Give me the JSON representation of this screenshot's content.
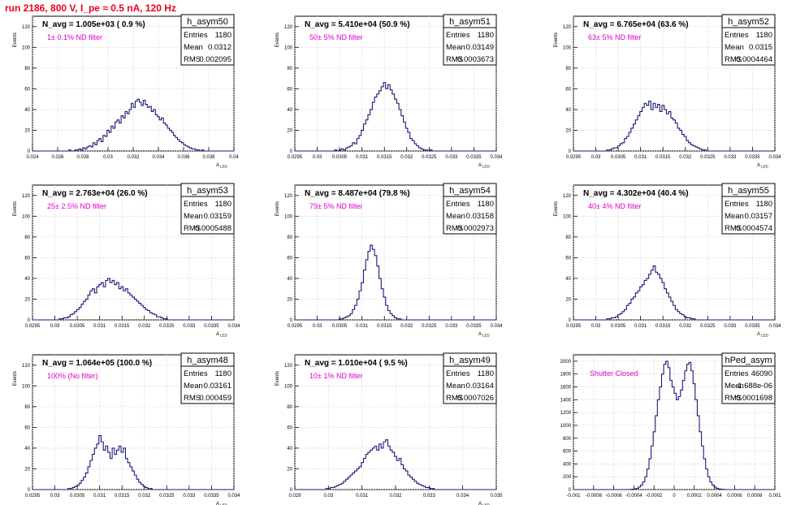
{
  "run_title": "run 2186,   800 V, I_pe ≈ 0.5 nA, 120 Hz",
  "colors": {
    "hist_line": "#1a1a7a",
    "note": "#e000c8",
    "title": "#e8001c",
    "grid": "#c8c8c8"
  },
  "chart_data": [
    {
      "type": "histogram",
      "name": "h_asym50",
      "stats": {
        "entries_label": "Entries",
        "entries": "1180",
        "mean_label": "Mean",
        "mean": "0.0312",
        "rms_label": "RMS",
        "rms": "0.002095"
      },
      "navg": "N_avg = 1.005e+03 ( 0.9 %)",
      "note": "1± 0.1% ND filter",
      "ylabel": "Events",
      "xlabel": "A_LED",
      "xlim": [
        0.024,
        0.04
      ],
      "ylim": [
        0,
        130
      ],
      "xticks": [
        "0.024",
        "0.026",
        "0.028",
        "0.03",
        "0.032",
        "0.034",
        "0.036",
        "0.038",
        "0.04"
      ],
      "yticks": [
        "0",
        "20",
        "40",
        "60",
        "80",
        "100",
        "120"
      ],
      "grid": true,
      "mean_value": 0.0312,
      "sigma_value": 0.002095,
      "peak": 50,
      "counts": [
        0,
        0,
        0,
        0,
        0,
        0,
        0,
        0,
        0,
        0,
        0,
        0,
        0,
        0,
        0,
        0,
        0,
        0,
        1,
        0,
        0,
        1,
        1,
        2,
        1,
        3,
        2,
        4,
        5,
        4,
        8,
        6,
        10,
        12,
        9,
        15,
        14,
        20,
        18,
        24,
        22,
        28,
        30,
        27,
        34,
        32,
        38,
        36,
        40,
        46,
        42,
        48,
        50,
        47,
        44,
        49,
        45,
        42,
        43,
        38,
        40,
        35,
        33,
        30,
        32,
        27,
        25,
        22,
        20,
        18,
        15,
        13,
        11,
        9,
        8,
        6,
        5,
        4,
        3,
        2,
        2,
        1,
        1,
        0,
        1,
        0,
        0,
        0,
        0,
        0,
        0,
        0,
        0,
        0,
        0,
        0,
        0,
        0,
        0,
        0
      ]
    },
    {
      "type": "histogram",
      "name": "h_asym51",
      "stats": {
        "entries_label": "Entries",
        "entries": "1180",
        "mean_label": "Mean",
        "mean": "0.03149",
        "rms_label": "RMS",
        "rms": "0.0003673"
      },
      "navg": "N_avg = 5.410e+04 (50.9 %)",
      "note": "50± 5% ND filter",
      "ylabel": "Events",
      "xlabel": "A_LED",
      "xlim": [
        0.0295,
        0.034
      ],
      "ylim": [
        0,
        130
      ],
      "xticks": [
        "0.0295",
        "0.03",
        "0.0305",
        "0.031",
        "0.0315",
        "0.032",
        "0.0325",
        "0.033",
        "0.0335",
        "0.034"
      ],
      "yticks": [
        "0",
        "20",
        "40",
        "60",
        "80",
        "100",
        "120"
      ],
      "grid": true,
      "mean_value": 0.03149,
      "sigma_value": 0.0003673,
      "peak": 66,
      "counts": [
        0,
        0,
        0,
        0,
        0,
        0,
        0,
        0,
        0,
        0,
        0,
        0,
        0,
        0,
        0,
        0,
        0,
        0,
        1,
        0,
        1,
        2,
        1,
        3,
        4,
        5,
        8,
        7,
        12,
        15,
        20,
        26,
        30,
        35,
        40,
        47,
        52,
        55,
        58,
        62,
        66,
        60,
        64,
        59,
        55,
        50,
        46,
        40,
        34,
        28,
        22,
        18,
        12,
        10,
        7,
        5,
        3,
        2,
        1,
        1,
        0,
        1,
        0,
        0,
        0,
        0,
        0,
        0,
        0,
        0,
        0,
        0,
        0,
        0,
        0,
        0,
        0,
        0,
        0,
        0,
        0,
        0,
        0,
        0,
        0,
        0,
        0,
        0,
        0,
        0,
        0
      ]
    },
    {
      "type": "histogram",
      "name": "h_asym52",
      "stats": {
        "entries_label": "Entries",
        "entries": "1180",
        "mean_label": "Mean",
        "mean": "0.0315",
        "rms_label": "RMS",
        "rms": "0.0004464"
      },
      "navg": "N_avg = 6.765e+04 (63.6 %)",
      "note": "63± 5% ND filter",
      "ylabel": "Events",
      "xlabel": "A_LED",
      "xlim": [
        0.0295,
        0.034
      ],
      "ylim": [
        0,
        130
      ],
      "xticks": [
        "0.0295",
        "0.03",
        "0.0305",
        "0.031",
        "0.0315",
        "0.032",
        "0.0325",
        "0.033",
        "0.0335",
        "0.034"
      ],
      "yticks": [
        "0",
        "20",
        "40",
        "60",
        "80",
        "100",
        "120"
      ],
      "grid": true,
      "mean_value": 0.0315,
      "sigma_value": 0.0004464,
      "peak": 48,
      "counts": [
        0,
        0,
        0,
        0,
        0,
        0,
        0,
        0,
        0,
        0,
        0,
        0,
        0,
        0,
        0,
        1,
        1,
        2,
        3,
        3,
        5,
        7,
        8,
        12,
        14,
        18,
        22,
        26,
        30,
        34,
        38,
        42,
        46,
        44,
        48,
        40,
        46,
        42,
        45,
        38,
        44,
        40,
        36,
        38,
        32,
        30,
        27,
        22,
        20,
        16,
        14,
        10,
        8,
        6,
        5,
        4,
        3,
        2,
        1,
        1,
        0,
        0,
        0,
        0,
        0,
        0,
        0,
        0,
        0,
        0,
        0,
        0,
        0,
        0,
        0,
        0,
        0,
        0,
        0,
        0,
        0,
        0,
        0,
        0,
        0,
        0,
        0,
        0,
        0,
        0,
        0
      ]
    },
    {
      "type": "histogram",
      "name": "h_asym53",
      "stats": {
        "entries_label": "Entries",
        "entries": "1180",
        "mean_label": "Mean",
        "mean": "0.03159",
        "rms_label": "RMS",
        "rms": "0.0005488"
      },
      "navg": "N_avg = 2.763e+04 (26.0 %)",
      "note": "25± 2.5% ND filter",
      "ylabel": "Events",
      "xlabel": "A_LED",
      "xlim": [
        0.0295,
        0.034
      ],
      "ylim": [
        0,
        130
      ],
      "xticks": [
        "0.0295",
        "0.03",
        "0.0305",
        "0.031",
        "0.0315",
        "0.032",
        "0.0325",
        "0.033",
        "0.0335",
        "0.034"
      ],
      "yticks": [
        "0",
        "20",
        "40",
        "60",
        "80",
        "100",
        "120"
      ],
      "grid": true,
      "mean_value": 0.03159,
      "sigma_value": 0.0005488,
      "peak": 40,
      "counts": [
        0,
        0,
        0,
        0,
        0,
        0,
        0,
        0,
        0,
        0,
        0,
        0,
        1,
        1,
        2,
        2,
        3,
        5,
        6,
        8,
        10,
        12,
        15,
        18,
        20,
        24,
        28,
        30,
        26,
        32,
        34,
        36,
        32,
        38,
        40,
        36,
        38,
        34,
        36,
        30,
        32,
        28,
        30,
        26,
        24,
        22,
        20,
        18,
        16,
        14,
        12,
        10,
        9,
        7,
        6,
        5,
        3,
        3,
        2,
        1,
        1,
        0,
        0,
        0,
        0,
        0,
        0,
        0,
        0,
        0,
        0,
        0,
        0,
        0,
        0,
        0,
        0,
        0,
        0,
        0,
        0,
        0,
        0,
        0,
        0,
        0,
        0,
        0,
        0,
        0,
        0
      ]
    },
    {
      "type": "histogram",
      "name": "h_asym54",
      "stats": {
        "entries_label": "Entries",
        "entries": "1180",
        "mean_label": "Mean",
        "mean": "0.03158",
        "rms_label": "RMS",
        "rms": "0.0002973"
      },
      "navg": "N_avg = 8.487e+04 (79.8 %)",
      "note": "79± 5% ND filter",
      "ylabel": "Events",
      "xlabel": "A_LED",
      "xlim": [
        0.0295,
        0.034
      ],
      "ylim": [
        0,
        130
      ],
      "xticks": [
        "0.0295",
        "0.03",
        "0.0305",
        "0.031",
        "0.0315",
        "0.032",
        "0.0325",
        "0.033",
        "0.0335",
        "0.034"
      ],
      "yticks": [
        "0",
        "20",
        "40",
        "60",
        "80",
        "100",
        "120"
      ],
      "grid": true,
      "mean_value": 0.03158,
      "sigma_value": 0.0002973,
      "peak": 72,
      "counts": [
        0,
        0,
        0,
        0,
        0,
        0,
        0,
        0,
        0,
        0,
        0,
        0,
        0,
        0,
        0,
        0,
        0,
        0,
        0,
        0,
        1,
        1,
        2,
        3,
        4,
        6,
        10,
        14,
        20,
        28,
        36,
        48,
        58,
        66,
        72,
        68,
        62,
        52,
        40,
        30,
        22,
        14,
        9,
        6,
        4,
        2,
        1,
        1,
        0,
        0,
        0,
        0,
        0,
        0,
        0,
        0,
        0,
        0,
        0,
        0,
        0,
        0,
        0,
        0,
        0,
        0,
        0,
        0,
        0,
        0,
        0,
        0,
        0,
        0,
        0,
        0,
        0,
        0,
        0,
        0,
        0,
        0,
        0,
        0,
        0,
        0,
        0,
        0,
        0,
        0,
        0
      ]
    },
    {
      "type": "histogram",
      "name": "h_asym55",
      "stats": {
        "entries_label": "Entries",
        "entries": "1180",
        "mean_label": "Mean",
        "mean": "0.03157",
        "rms_label": "RMS",
        "rms": "0.0004574"
      },
      "navg": "N_avg = 4.302e+04 (40.4 %)",
      "note": "40± 4% ND filter",
      "ylabel": "Events",
      "xlabel": "A_LED",
      "xlim": [
        0.0295,
        0.034
      ],
      "ylim": [
        0,
        130
      ],
      "xticks": [
        "0.0295",
        "0.03",
        "0.0305",
        "0.031",
        "0.0315",
        "0.032",
        "0.0325",
        "0.033",
        "0.0335",
        "0.034"
      ],
      "yticks": [
        "0",
        "20",
        "40",
        "60",
        "80",
        "100",
        "120"
      ],
      "grid": true,
      "mean_value": 0.03157,
      "sigma_value": 0.0004574,
      "peak": 52,
      "counts": [
        0,
        0,
        0,
        0,
        0,
        0,
        0,
        0,
        0,
        0,
        0,
        0,
        0,
        0,
        0,
        1,
        1,
        2,
        2,
        3,
        5,
        6,
        8,
        10,
        14,
        16,
        20,
        22,
        26,
        28,
        32,
        34,
        38,
        40,
        44,
        48,
        52,
        46,
        44,
        40,
        36,
        30,
        26,
        22,
        18,
        14,
        10,
        8,
        6,
        5,
        3,
        2,
        2,
        1,
        1,
        0,
        0,
        0,
        0,
        0,
        0,
        0,
        0,
        0,
        0,
        0,
        0,
        0,
        0,
        0,
        0,
        0,
        0,
        0,
        0,
        0,
        0,
        0,
        0,
        0,
        0,
        0,
        0,
        0,
        0,
        0,
        0,
        0,
        0,
        0,
        0
      ]
    },
    {
      "type": "histogram",
      "name": "h_asym48",
      "stats": {
        "entries_label": "Entries",
        "entries": "1180",
        "mean_label": "Mean",
        "mean": "0.03161",
        "rms_label": "RMS",
        "rms": "0.000459"
      },
      "navg": "N_avg = 1.064e+05 (100.0 %)",
      "note": "100% (No filter)",
      "ylabel": "Events",
      "xlabel": "A_LED",
      "xlim": [
        0.0295,
        0.034
      ],
      "ylim": [
        0,
        130
      ],
      "xticks": [
        "0.0295",
        "0.03",
        "0.0305",
        "0.031",
        "0.0315",
        "0.032",
        "0.0325",
        "0.033",
        "0.0335",
        "0.034"
      ],
      "yticks": [
        "0",
        "20",
        "40",
        "60",
        "80",
        "100",
        "120"
      ],
      "grid": true,
      "mean_value": 0.03161,
      "sigma_value": 0.000459,
      "peak": 52,
      "counts": [
        0,
        0,
        0,
        0,
        0,
        0,
        0,
        0,
        0,
        0,
        0,
        0,
        0,
        0,
        0,
        0,
        1,
        1,
        2,
        3,
        4,
        6,
        9,
        12,
        16,
        22,
        28,
        34,
        40,
        44,
        52,
        46,
        38,
        42,
        36,
        30,
        40,
        34,
        38,
        42,
        36,
        40,
        30,
        26,
        22,
        18,
        14,
        10,
        7,
        5,
        3,
        2,
        1,
        1,
        0,
        0,
        0,
        0,
        0,
        0,
        0,
        0,
        0,
        0,
        0,
        0,
        0,
        0,
        0,
        0,
        0,
        0,
        0,
        0,
        0,
        0,
        0,
        0,
        0,
        0,
        0,
        0,
        0,
        0,
        0,
        0,
        0,
        0,
        0,
        0,
        0
      ]
    },
    {
      "type": "histogram",
      "name": "h_asym49",
      "stats": {
        "entries_label": "Entries",
        "entries": "1180",
        "mean_label": "Mean",
        "mean": "0.03164",
        "rms_label": "RMS",
        "rms": "0.0007026"
      },
      "navg": "N_avg = 1.010e+04 ( 9.5 %)",
      "note": "10± 1% ND filter",
      "ylabel": "Events",
      "xlabel": "A_LED",
      "xlim": [
        0.029,
        0.035
      ],
      "ylim": [
        0,
        130
      ],
      "xticks": [
        "0.029",
        "0.03",
        "0.031",
        "0.032",
        "0.033",
        "0.034",
        "0.035"
      ],
      "yticks": [
        "0",
        "20",
        "40",
        "60",
        "80",
        "100",
        "120"
      ],
      "grid": true,
      "mean_value": 0.03164,
      "sigma_value": 0.0007026,
      "peak": 48,
      "counts": [
        0,
        0,
        0,
        0,
        0,
        0,
        0,
        0,
        0,
        0,
        0,
        0,
        0,
        0,
        1,
        1,
        2,
        2,
        3,
        4,
        5,
        6,
        8,
        10,
        12,
        14,
        16,
        18,
        20,
        22,
        26,
        30,
        34,
        36,
        38,
        40,
        42,
        38,
        44,
        40,
        46,
        48,
        42,
        38,
        36,
        32,
        28,
        30,
        24,
        20,
        18,
        14,
        12,
        10,
        8,
        6,
        5,
        4,
        3,
        2,
        2,
        1,
        1,
        0,
        0,
        0,
        0,
        0,
        0,
        0,
        0,
        0,
        0,
        0,
        0,
        0,
        0,
        0,
        0,
        0,
        0,
        0,
        0,
        0,
        0,
        0,
        0,
        0,
        0,
        0,
        0
      ]
    },
    {
      "type": "histogram",
      "name": "hPed_asym",
      "stats": {
        "entries_label": "Entries",
        "entries": "46090",
        "mean_label": "Mean",
        "mean": "-1.688e-06",
        "rms_label": "RMS",
        "rms": "0.0001698"
      },
      "navg": "",
      "note": "Shutter Closed",
      "ylabel": "",
      "xlabel": "",
      "xlim": [
        -0.001,
        0.001
      ],
      "ylim": [
        0,
        2100
      ],
      "xticks": [
        "-0.001",
        "-0.0008",
        "-0.0006",
        "-0.0004",
        "-0.0002",
        "0",
        "0.0002",
        "0.0004",
        "0.0006",
        "0.0008",
        "0.001"
      ],
      "yticks": [
        "0",
        "200",
        "400",
        "600",
        "800",
        "1000",
        "1200",
        "1400",
        "1600",
        "1800",
        "2000"
      ],
      "grid": true,
      "bimodal": true,
      "peak": 2000,
      "counts": [
        0,
        0,
        0,
        0,
        0,
        0,
        0,
        0,
        0,
        0,
        0,
        0,
        0,
        0,
        0,
        0,
        0,
        0,
        0,
        0,
        0,
        0,
        0,
        0,
        0,
        0,
        1,
        2,
        5,
        10,
        20,
        40,
        70,
        120,
        200,
        320,
        480,
        680,
        900,
        1150,
        1400,
        1600,
        1800,
        1950,
        2000,
        1900,
        1700,
        1600,
        1500,
        1400,
        1450,
        1550,
        1700,
        1850,
        1950,
        1980,
        1850,
        1650,
        1400,
        1150,
        900,
        680,
        480,
        320,
        200,
        120,
        70,
        40,
        20,
        10,
        5,
        2,
        1,
        0,
        0,
        0,
        0,
        0,
        0,
        0,
        0,
        0,
        0,
        0,
        0,
        0,
        0,
        0,
        0,
        0,
        0,
        0,
        0,
        0,
        0,
        0
      ]
    }
  ]
}
